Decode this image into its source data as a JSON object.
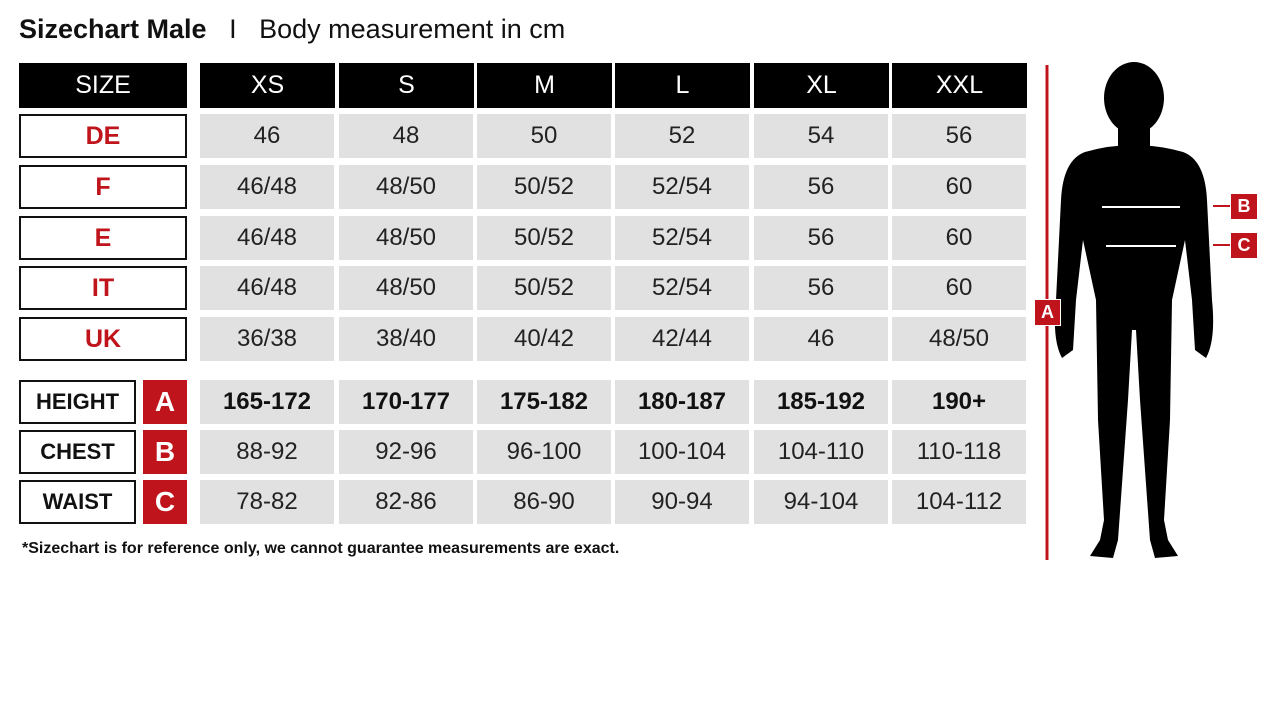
{
  "title": {
    "main": "Sizechart Male",
    "separator": "I",
    "sub": "Body measurement in cm"
  },
  "colors": {
    "accent": "#c0141c",
    "header_bg": "#000000",
    "cell_bg": "#e1e1e1"
  },
  "header": {
    "label": "SIZE",
    "sizes": [
      "XS",
      "S",
      "M",
      "L",
      "XL",
      "XXL"
    ]
  },
  "size_rows": [
    {
      "label": "DE",
      "values": [
        "46",
        "48",
        "50",
        "52",
        "54",
        "56"
      ]
    },
    {
      "label": "F",
      "values": [
        "46/48",
        "48/50",
        "50/52",
        "52/54",
        "56",
        "60"
      ]
    },
    {
      "label": "E",
      "values": [
        "46/48",
        "48/50",
        "50/52",
        "52/54",
        "56",
        "60"
      ]
    },
    {
      "label": "IT",
      "values": [
        "46/48",
        "48/50",
        "50/52",
        "52/54",
        "56",
        "60"
      ]
    },
    {
      "label": "UK",
      "values": [
        "36/38",
        "38/40",
        "40/42",
        "42/44",
        "46",
        "48/50"
      ]
    }
  ],
  "measure_rows": [
    {
      "label": "HEIGHT",
      "letter": "A",
      "values": [
        "165-172",
        "170-177",
        "175-182",
        "180-187",
        "185-192",
        "190+"
      ]
    },
    {
      "label": "CHEST",
      "letter": "B",
      "values": [
        "88-92",
        "92-96",
        "96-100",
        "100-104",
        "104-110",
        "110-118"
      ]
    },
    {
      "label": "WAIST",
      "letter": "C",
      "values": [
        "78-82",
        "82-86",
        "86-90",
        "90-94",
        "94-104",
        "104-112"
      ]
    }
  ],
  "note": "*Sizechart is for reference only, we cannot guarantee measurements are exact.",
  "figure": {
    "height_tag": "A",
    "chest_tag": "B",
    "waist_tag": "C"
  }
}
